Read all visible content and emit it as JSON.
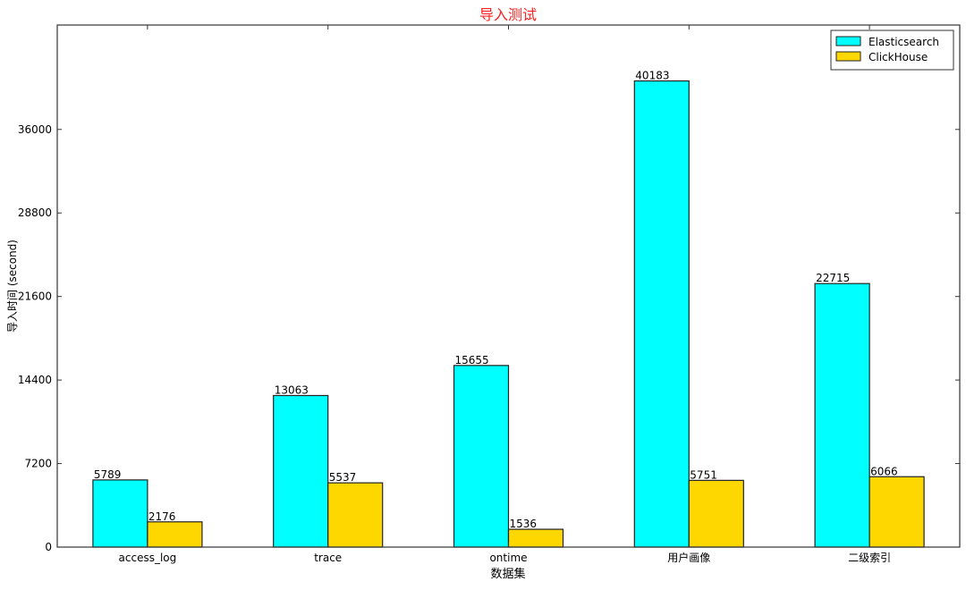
{
  "chart_data": {
    "type": "bar",
    "title": "导入测试",
    "xlabel": "数据集",
    "ylabel": "导入时间 (second)",
    "categories": [
      "access_log",
      "trace",
      "ontime",
      "用户画像",
      "二级索引"
    ],
    "series": [
      {
        "name": "Elasticsearch",
        "color": "#00ffff",
        "values": [
          5789,
          13063,
          15655,
          40183,
          22715
        ]
      },
      {
        "name": "ClickHouse",
        "color": "#ffd700",
        "values": [
          2176,
          5537,
          1536,
          5751,
          6066
        ]
      }
    ],
    "ylim": [
      0,
      45000
    ],
    "yticks": [
      0,
      7200,
      14400,
      21600,
      28800,
      36000
    ],
    "grid": false,
    "legend": "top-right",
    "title_color": "#ff2020"
  }
}
